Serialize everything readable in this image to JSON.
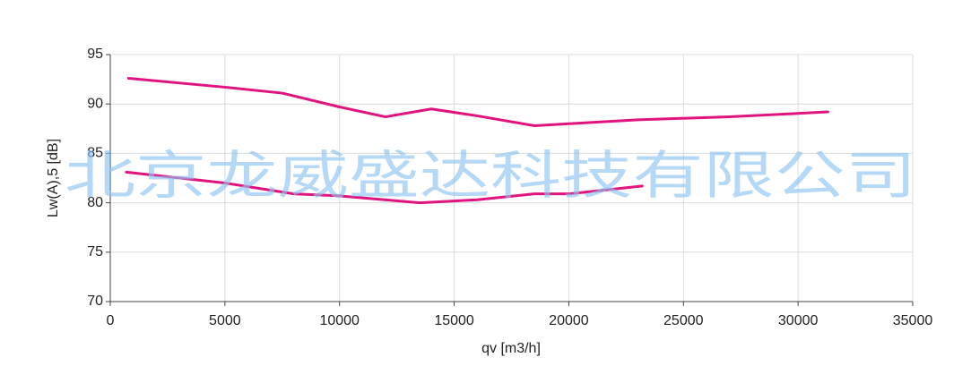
{
  "chart_data": {
    "type": "line",
    "xlabel": "qv [m3/h]",
    "ylabel": "Lw(A),5 [dB]",
    "watermark": "北京龙威盛达科技有限公司",
    "xlim": [
      0,
      35000
    ],
    "xticks": [
      0,
      5000,
      10000,
      15000,
      20000,
      25000,
      30000,
      35000
    ],
    "ylim": [
      70,
      95
    ],
    "yticks": [
      70,
      75,
      80,
      85,
      90,
      95
    ],
    "grid": true,
    "series": [
      {
        "color": "#e0137f",
        "x": [
          800,
          5000,
          7500,
          10000,
          12000,
          14000,
          16000,
          18500,
          20000,
          23000,
          27000,
          31300
        ],
        "values": [
          92.6,
          91.7,
          91.1,
          89.7,
          88.7,
          89.5,
          88.8,
          87.8,
          88.0,
          88.4,
          88.7,
          89.2
        ]
      },
      {
        "color": "#e0137f",
        "x": [
          700,
          5000,
          8000,
          10000,
          13500,
          16000,
          18500,
          20000,
          23200
        ],
        "values": [
          83.1,
          82.0,
          80.9,
          80.7,
          80.0,
          80.3,
          80.9,
          80.9,
          81.7
        ]
      }
    ]
  }
}
